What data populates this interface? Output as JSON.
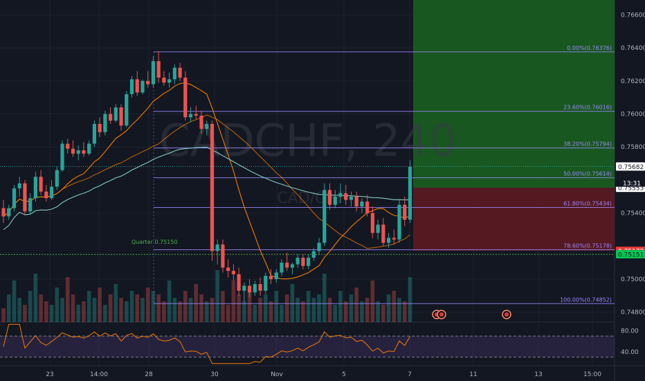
{
  "watermark": {
    "symbol": "CADCHF, 240",
    "pair": "CAD/CHF"
  },
  "countdown": "13:31",
  "quarter_label": "Quarter 0.75150",
  "colors": {
    "up": "#26a69a",
    "down": "#ef5350",
    "fib": "#9c88ff",
    "ma_fast": "#f57c00",
    "ma_slow": "#80cbc4",
    "profit_zone": "#1b5e20",
    "loss_zone": "#5d1a22",
    "quarter_line": "#4caf50",
    "rsi": "#f57c00"
  },
  "price_tags": [
    {
      "value": "0.75682",
      "bg": "#ffffff",
      "fg": "#131722"
    },
    {
      "value": "0.75553",
      "bg": "#ffffff",
      "fg": "#131722"
    },
    {
      "value": "0.75172",
      "bg": "#e53935",
      "fg": "#ffffff"
    },
    {
      "value": "0.75151",
      "bg": "#00c853",
      "fg": "#131722"
    }
  ],
  "chart_data": {
    "type": "candlestick",
    "timeframe": "240",
    "y_ticks": [
      "0.76600",
      "0.76400",
      "0.76200",
      "0.76000",
      "0.75800",
      "0.75400",
      "0.75000",
      "0.74800"
    ],
    "x_ticks": [
      "23",
      "14:00",
      "28",
      "30",
      "Nov",
      "5",
      "7",
      "11",
      "13",
      "15:00"
    ],
    "ylim": [
      0.7474,
      0.7669
    ],
    "fib_levels": [
      {
        "label": "0.00%(0.76376)",
        "value": 0.76376
      },
      {
        "label": "23.60%(0.76016)",
        "value": 0.76016
      },
      {
        "label": "38.20%(0.75794)",
        "value": 0.75794
      },
      {
        "label": "50.00%(0.75614)",
        "value": 0.75614
      },
      {
        "label": "61.80%(0.75434)",
        "value": 0.75434
      },
      {
        "label": "78.60%(0.75178)",
        "value": 0.75178
      },
      {
        "label": "100.00%(0.74852)",
        "value": 0.74852
      }
    ],
    "position": {
      "entry": 0.75553,
      "stop": 0.75172,
      "target": 0.7669
    },
    "rsi": {
      "ticks": [
        "80.00",
        "40.00"
      ],
      "upper": 70,
      "lower": 30,
      "last": 54
    },
    "candles": [
      [
        0.7543,
        0.7548,
        0.7534,
        0.7538
      ],
      [
        0.7538,
        0.7545,
        0.7536,
        0.7543
      ],
      [
        0.7543,
        0.7557,
        0.7541,
        0.7555
      ],
      [
        0.7555,
        0.7562,
        0.755,
        0.7558
      ],
      [
        0.7558,
        0.756,
        0.7539,
        0.7541
      ],
      [
        0.7541,
        0.7552,
        0.7539,
        0.7549
      ],
      [
        0.7549,
        0.7565,
        0.7547,
        0.7562
      ],
      [
        0.7562,
        0.7566,
        0.7551,
        0.7553
      ],
      [
        0.7553,
        0.7557,
        0.7547,
        0.7549
      ],
      [
        0.7549,
        0.756,
        0.7548,
        0.7556
      ],
      [
        0.7556,
        0.7568,
        0.7554,
        0.7566
      ],
      [
        0.7566,
        0.7584,
        0.7565,
        0.7582
      ],
      [
        0.7582,
        0.7585,
        0.7576,
        0.7579
      ],
      [
        0.7579,
        0.7584,
        0.7574,
        0.7576
      ],
      [
        0.7576,
        0.7581,
        0.7572,
        0.7578
      ],
      [
        0.7578,
        0.7583,
        0.7574,
        0.7576
      ],
      [
        0.7576,
        0.7584,
        0.7575,
        0.7582
      ],
      [
        0.7582,
        0.7596,
        0.758,
        0.7594
      ],
      [
        0.7594,
        0.7598,
        0.7586,
        0.7589
      ],
      [
        0.7589,
        0.7602,
        0.7587,
        0.76
      ],
      [
        0.76,
        0.7604,
        0.7594,
        0.7596
      ],
      [
        0.7596,
        0.7606,
        0.7595,
        0.7604
      ],
      [
        0.7604,
        0.7606,
        0.759,
        0.7593
      ],
      [
        0.7593,
        0.7614,
        0.7592,
        0.7612
      ],
      [
        0.7612,
        0.7623,
        0.761,
        0.7621
      ],
      [
        0.7621,
        0.7626,
        0.7611,
        0.7613
      ],
      [
        0.7613,
        0.7621,
        0.7612,
        0.762
      ],
      [
        0.762,
        0.7626,
        0.7616,
        0.7618
      ],
      [
        0.7618,
        0.7635,
        0.7616,
        0.7632
      ],
      [
        0.7632,
        0.7638,
        0.7619,
        0.7622
      ],
      [
        0.7622,
        0.7626,
        0.7617,
        0.7619
      ],
      [
        0.7619,
        0.7625,
        0.7616,
        0.7621
      ],
      [
        0.7621,
        0.763,
        0.7618,
        0.7628
      ],
      [
        0.7628,
        0.7631,
        0.762,
        0.7622
      ],
      [
        0.7622,
        0.7626,
        0.7596,
        0.7598
      ],
      [
        0.7598,
        0.7604,
        0.7595,
        0.76
      ],
      [
        0.76,
        0.7605,
        0.7597,
        0.7599
      ],
      [
        0.7599,
        0.7602,
        0.7588,
        0.7591
      ],
      [
        0.7591,
        0.7596,
        0.7587,
        0.7594
      ],
      [
        0.7594,
        0.7596,
        0.7511,
        0.7517
      ],
      [
        0.7517,
        0.7524,
        0.7509,
        0.7521
      ],
      [
        0.7521,
        0.7524,
        0.7504,
        0.7507
      ],
      [
        0.7507,
        0.7512,
        0.7501,
        0.7505
      ],
      [
        0.7505,
        0.7509,
        0.7499,
        0.7503
      ],
      [
        0.7503,
        0.7507,
        0.749,
        0.7493
      ],
      [
        0.7493,
        0.7498,
        0.7486,
        0.7496
      ],
      [
        0.7496,
        0.75,
        0.7489,
        0.7492
      ],
      [
        0.7492,
        0.7499,
        0.749,
        0.7497
      ],
      [
        0.7497,
        0.7501,
        0.749,
        0.7493
      ],
      [
        0.7493,
        0.7504,
        0.7491,
        0.7502
      ],
      [
        0.7502,
        0.7506,
        0.7497,
        0.75
      ],
      [
        0.75,
        0.7506,
        0.7498,
        0.7504
      ],
      [
        0.7504,
        0.7512,
        0.7502,
        0.751
      ],
      [
        0.751,
        0.7516,
        0.7505,
        0.7507
      ],
      [
        0.7507,
        0.751,
        0.7503,
        0.7509
      ],
      [
        0.7509,
        0.7515,
        0.7507,
        0.7513
      ],
      [
        0.7513,
        0.7515,
        0.7506,
        0.7508
      ],
      [
        0.7508,
        0.7515,
        0.7506,
        0.7513
      ],
      [
        0.7513,
        0.7519,
        0.7511,
        0.7517
      ],
      [
        0.7517,
        0.7525,
        0.7515,
        0.7522
      ],
      [
        0.7522,
        0.7558,
        0.752,
        0.7554
      ],
      [
        0.7554,
        0.7558,
        0.7542,
        0.7545
      ],
      [
        0.7545,
        0.7554,
        0.7543,
        0.755
      ],
      [
        0.755,
        0.7558,
        0.7546,
        0.7552
      ],
      [
        0.7552,
        0.7557,
        0.7545,
        0.7548
      ],
      [
        0.7548,
        0.7553,
        0.7544,
        0.755
      ],
      [
        0.755,
        0.7553,
        0.7541,
        0.7544
      ],
      [
        0.7544,
        0.7549,
        0.754,
        0.7547
      ],
      [
        0.7547,
        0.7551,
        0.7538,
        0.754
      ],
      [
        0.754,
        0.7544,
        0.7525,
        0.7528
      ],
      [
        0.7528,
        0.7536,
        0.7524,
        0.7533
      ],
      [
        0.7533,
        0.7537,
        0.752,
        0.7522
      ],
      [
        0.7522,
        0.7528,
        0.7519,
        0.7525
      ],
      [
        0.7525,
        0.753,
        0.7521,
        0.7524
      ],
      [
        0.7524,
        0.7548,
        0.7522,
        0.7545
      ],
      [
        0.7545,
        0.755,
        0.7532,
        0.7536
      ],
      [
        0.7536,
        0.7572,
        0.7534,
        0.7568
      ]
    ],
    "volume": [
      4,
      8,
      12,
      7,
      5,
      9,
      14,
      8,
      6,
      5,
      10,
      7,
      13,
      8,
      5,
      6,
      9,
      7,
      10,
      5,
      8,
      11,
      7,
      6,
      9,
      8,
      7,
      10,
      9,
      8,
      6,
      12,
      7,
      6,
      9,
      7,
      11,
      8,
      6,
      7,
      15,
      9,
      5,
      12,
      8,
      6,
      10,
      5,
      7,
      8,
      6,
      9,
      5,
      8,
      11,
      7,
      6,
      9,
      7,
      8,
      14,
      7,
      5,
      9,
      6,
      8,
      10,
      6,
      7,
      12,
      6,
      5,
      8,
      9,
      7,
      6,
      13
    ]
  }
}
